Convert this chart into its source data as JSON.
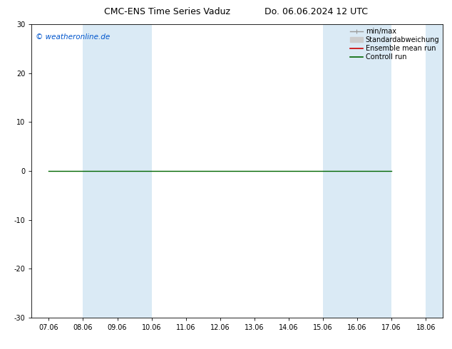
{
  "title": "CMC-ENS Time Series Vaduz",
  "title2": "Do. 06.06.2024 12 UTC",
  "watermark": "© weatheronline.de",
  "watermark_color": "#0055cc",
  "ylim": [
    -30,
    30
  ],
  "yticks": [
    -30,
    -20,
    -10,
    0,
    10,
    20,
    30
  ],
  "xtick_labels": [
    "07.06",
    "08.06",
    "09.06",
    "10.06",
    "11.06",
    "12.06",
    "13.06",
    "14.06",
    "15.06",
    "16.06",
    "17.06",
    "18.06"
  ],
  "x_values": [
    0,
    1,
    2,
    3,
    4,
    5,
    6,
    7,
    8,
    9,
    10,
    11
  ],
  "control_run_color": "#006600",
  "ensemble_mean_color": "#cc0000",
  "min_max_color": "#999999",
  "std_color": "#cccccc",
  "background_color": "#ffffff",
  "band_color": "#daeaf5",
  "legend_labels": [
    "min/max",
    "Standardabweichung",
    "Ensemble mean run",
    "Controll run"
  ],
  "font_size_title": 9,
  "font_size_axis": 7,
  "font_size_legend": 7,
  "font_size_watermark": 7.5
}
